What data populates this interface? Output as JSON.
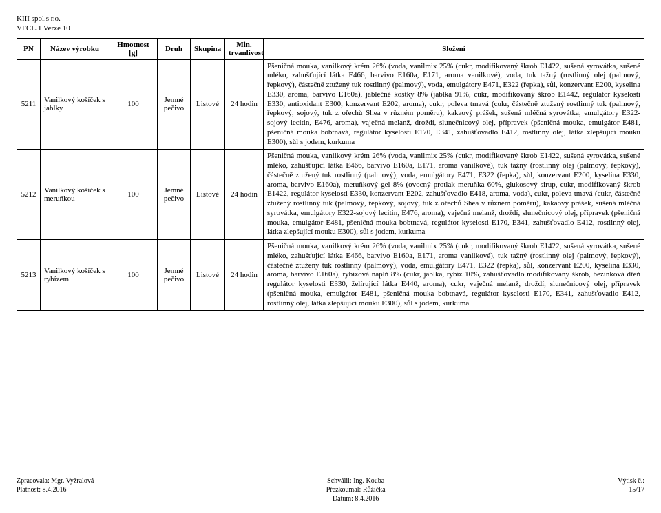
{
  "header": {
    "line1": "KIII spol.s r.o.",
    "line2": "VFCL.1 Verze 10"
  },
  "columns": {
    "pn": "PN",
    "nazev": "Název výrobku",
    "hmotnost": "Hmotnost [g]",
    "druh": "Druh",
    "skupina": "Skupina",
    "min": "Min. trvanlivost",
    "slozeni": "Složení"
  },
  "rows": [
    {
      "pn": "5211",
      "nazev": "Vanilkový košíček s jablky",
      "hmotnost": "100",
      "druh": "Jemné pečivo",
      "skupina": "Listové",
      "min": "24 hodin",
      "slozeni": "Pšeničná mouka, vanilkový krém 26% (voda, vanilmix 25% (cukr, modifikovaný škrob E1422, sušená syrovátka, sušené mléko, zahušťující látka E466, barvivo E160a, E171, aroma vanilkové), voda, tuk tažný (rostlinný olej (palmový, řepkový), částečně ztužený tuk rostlinný (palmový), voda, emulgátory E471, E322 (řepka), sůl, konzervant E200, kyselina E330, aroma, barvivo E160a), jablečné kostky 8% (jablka 91%, cukr, modifikovaný škrob E1442, regulátor kyselosti E330, antioxidant E300, konzervant E202, aroma), cukr, poleva tmavá (cukr, částečně ztužený rostlinný tuk (palmový, řepkový, sojový, tuk z ořechů Shea v různém poměru), kakaový prášek, sušená mléčná syrovátka, emulgátory E322-sojový lecitin, E476, aroma), vaječná melanž, droždí, slunečnicový olej, přípravek (pšeničná mouka, emulgátor E481, pšeničná mouka bobtnavá, regulátor kyselosti E170, E341, zahušťovadlo E412, rostlinný olej, látka zlepšující mouku E300), sůl s jodem, kurkuma"
    },
    {
      "pn": "5212",
      "nazev": "Vanilkový košíček s meruňkou",
      "hmotnost": "100",
      "druh": "Jemné pečivo",
      "skupina": "Listové",
      "min": "24 hodin",
      "slozeni": "Pšeničná mouka, vanilkový krém 26% (voda, vanilmix 25% (cukr, modifikovaný škrob E1422, sušená syrovátka, sušené mléko, zahušťující látka E466, barvivo E160a, E171, aroma vanilkové), tuk tažný (rostlinný olej (palmový, řepkový), částečně ztužený tuk rostlinný (palmový), voda, emulgátory E471, E322 (řepka), sůl, konzervant E200, kyselina E330, aroma, barvivo E160a), meruňkový gel 8% (ovocný protlak meruňka 60%, glukosový sirup, cukr, modifikovaný škrob E1422, regulátor kyselosti E330, konzervant E202, zahušťovadlo E418, aroma, voda), cukr, poleva tmavá (cukr, částečně ztužený rostlinný tuk (palmový, řepkový, sojový, tuk z ořechů Shea v různém poměru), kakaový prášek, sušená mléčná syrovátka, emulgátory E322-sojový lecitin, E476, aroma), vaječná melanž, droždí, slunečnicový olej, přípravek (pšeničná mouka, emulgátor E481, pšeničná mouka bobtnavá, regulátor kyselosti E170, E341, zahušťovadlo E412, rostlinný olej, látka zlepšující mouku E300), sůl s jodem, kurkuma"
    },
    {
      "pn": "5213",
      "nazev": "Vanilkový košíček s rybízem",
      "hmotnost": "100",
      "druh": "Jemné pečivo",
      "skupina": "Listové",
      "min": "24 hodin",
      "slozeni": "Pšeničná mouka, vanilkový krém 26% (voda, vanilmix 25% (cukr, modifikovaný škrob E1422, sušená syrovátka, sušené mléko, zahušťující látka E466, barvivo E160a, E171, aroma vanilkové), tuk tažný (rostlinný olej (palmový, řepkový), částečně ztužený tuk rostlinný (palmový), voda, emulgátory E471, E322 (řepka), sůl, konzervant E200, kyselina E330, aroma, barvivo E160a), rybízová náplň 8% (cukr, jablka, rybíz 10%, zahušťovadlo modifikovaný škrob, bezinková dřeň regulátor kyselosti E330, želírující látka E440, aroma), cukr, vaječná melanž, droždí, slunečnicový olej, přípravek (pšeničná mouka, emulgátor E481, pšeničná mouka bobtnavá, regulátor kyselosti E170, E341, zahušťovadlo E412, rostlinný olej, látka zlepšující mouku E300), sůl s jodem, kurkuma"
    }
  ],
  "footer": {
    "left": "Zpracovala: Mgr. Vyžralová\nPlatnost: 8.4.2016",
    "center": "Schválil: Ing. Kouba\nPřezkoumal: Růžička\nDatum: 8.4.2016",
    "right": "Výtisk č.:\n15/17"
  }
}
